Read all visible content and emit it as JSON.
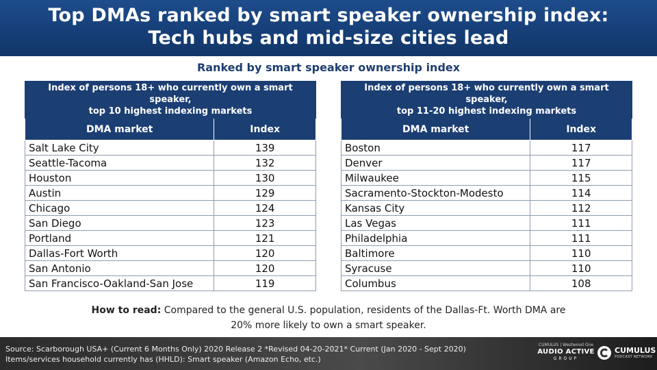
{
  "header": {
    "title_line1": "Top DMAs ranked by smart speaker ownership index:",
    "title_line2": "Tech hubs and mid-size cities lead"
  },
  "subtitle": "Ranked by smart speaker ownership index",
  "chart_data": [
    {
      "type": "table",
      "caption_line1": "Index of persons 18+ who currently own a smart speaker,",
      "caption_line2": "top 10 highest indexing markets",
      "columns": [
        "DMA market",
        "Index"
      ],
      "rows": [
        [
          "Salt Lake City",
          "139"
        ],
        [
          "Seattle-Tacoma",
          "132"
        ],
        [
          "Houston",
          "130"
        ],
        [
          "Austin",
          "129"
        ],
        [
          "Chicago",
          "124"
        ],
        [
          "San Diego",
          "123"
        ],
        [
          "Portland",
          "121"
        ],
        [
          "Dallas-Fort Worth",
          "120"
        ],
        [
          "San Antonio",
          "120"
        ],
        [
          "San Francisco-Oakland-San Jose",
          "119"
        ]
      ]
    },
    {
      "type": "table",
      "caption_line1": "Index of persons 18+ who currently own a smart speaker,",
      "caption_line2": "top 11-20 highest indexing markets",
      "columns": [
        "DMA market",
        "Index"
      ],
      "rows": [
        [
          "Boston",
          "117"
        ],
        [
          "Denver",
          "117"
        ],
        [
          "Milwaukee",
          "115"
        ],
        [
          "Sacramento-Stockton-Modesto",
          "114"
        ],
        [
          "Kansas City",
          "112"
        ],
        [
          "Las Vegas",
          "111"
        ],
        [
          "Philadelphia",
          "111"
        ],
        [
          "Baltimore",
          "110"
        ],
        [
          "Syracuse",
          "110"
        ],
        [
          "Columbus",
          "108"
        ]
      ]
    }
  ],
  "howto": {
    "label": "How to read:",
    "text_line1": " Compared to the general U.S. population, residents of the Dallas-Ft. Worth DMA are",
    "text_line2": "20% more likely to own a smart speaker."
  },
  "footer": {
    "source_line1": "Source: Scarborough USA+ (Current 6 Months Only) 2020 Release 2 *Revised 04-20-2021* Current (Jan 2020 - Sept 2020)",
    "source_line2": "Items/services household currently has (HHLD): Smart speaker (Amazon Echo, etc.)",
    "logo1_top": "CUMULUS | Westwood One",
    "logo1_main": "AUDIO ACTIVE",
    "logo1_group": "GROUP",
    "logo2_main": "CUMULUS",
    "logo2_sub": "PODCAST NETWORK"
  },
  "colors": {
    "header_bg": "#1b3e73",
    "table_header_bg": "#1b3e73",
    "subtitle_text": "#1e3e70",
    "footer_bg": "#333333"
  }
}
